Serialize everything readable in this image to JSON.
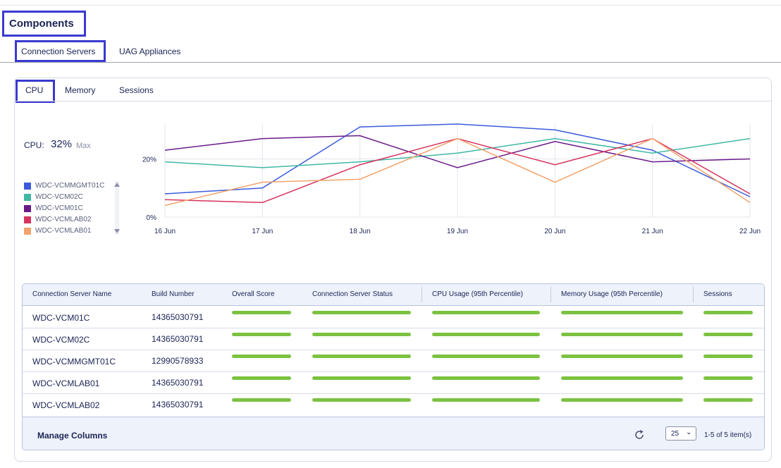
{
  "page": {
    "title": "Components"
  },
  "tabs": [
    {
      "label": "Connection Servers"
    },
    {
      "label": "UAG Appliances"
    }
  ],
  "subtabs": [
    {
      "label": "CPU"
    },
    {
      "label": "Memory"
    },
    {
      "label": "Sessions"
    }
  ],
  "summary": {
    "label": "CPU:",
    "value": "32%",
    "suffix": "Max"
  },
  "legend": [
    {
      "name": "WDC-VCMMGMT01C",
      "color": "#3b5bdb"
    },
    {
      "name": "WDC-VCM02C",
      "color": "#3fb8a4"
    },
    {
      "name": "WDC-VCM01C",
      "color": "#6a1b8a"
    },
    {
      "name": "WDC-VCMLAB02",
      "color": "#d6335e"
    },
    {
      "name": "WDC-VCMLAB01",
      "color": "#f2a36b"
    }
  ],
  "chart_data": {
    "type": "line",
    "x": [
      "16 Jun",
      "17 Jun",
      "18 Jun",
      "19 Jun",
      "20 Jun",
      "21 Jun",
      "22 Jun"
    ],
    "yticks": [
      "20%",
      "0%"
    ],
    "ylim": [
      0,
      32
    ],
    "grid": true,
    "series": [
      {
        "name": "WDC-VCMMGMT01C",
        "color": "#3b5bdb",
        "values": [
          8,
          10,
          31,
          32,
          30,
          23,
          7
        ]
      },
      {
        "name": "WDC-VCM02C",
        "color": "#3fb8a4",
        "values": [
          19,
          17,
          19,
          22,
          27,
          22,
          27
        ]
      },
      {
        "name": "WDC-VCM01C",
        "color": "#6a1b8a",
        "values": [
          23,
          27,
          28,
          17,
          26,
          19,
          20
        ]
      },
      {
        "name": "WDC-VCMLAB02",
        "color": "#d6335e",
        "values": [
          6,
          5,
          18,
          27,
          18,
          27,
          8
        ]
      },
      {
        "name": "WDC-VCMLAB01",
        "color": "#f2a36b",
        "values": [
          4,
          12,
          13,
          27,
          12,
          27,
          5
        ]
      }
    ]
  },
  "table": {
    "headers": [
      "Connection Server Name",
      "Build Number",
      "Overall Score",
      "Connection Server Status",
      "CPU Usage (95th Percentile)",
      "Memory Usage (95th Percentile)",
      "Sessions"
    ],
    "rows": [
      {
        "name": "WDC-VCM01C",
        "build": "14365030791"
      },
      {
        "name": "WDC-VCM02C",
        "build": "14365030791"
      },
      {
        "name": "WDC-VCMMGMT01C",
        "build": "12990578933"
      },
      {
        "name": "WDC-VCMLAB01",
        "build": "14365030791"
      },
      {
        "name": "WDC-VCMLAB02",
        "build": "14365030791"
      }
    ],
    "bar_color": "#7cc242"
  },
  "footer": {
    "manage": "Manage Columns",
    "page_size": "25",
    "page_info": "1-5 of 5 item(s)"
  }
}
